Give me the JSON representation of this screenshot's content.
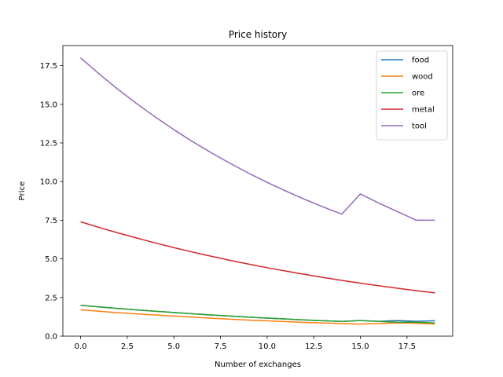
{
  "chart_data": {
    "type": "line",
    "title": "Price history",
    "xlabel": "Number of exchanges",
    "ylabel": "Price",
    "xlim": [
      -0.95,
      19.95
    ],
    "ylim": [
      0,
      18.8
    ],
    "xticks": [
      0,
      2.5,
      5,
      7.5,
      10,
      12.5,
      15,
      17.5
    ],
    "xtick_labels": [
      "0.0",
      "2.5",
      "5.0",
      "7.5",
      "10.0",
      "12.5",
      "15.0",
      "17.5"
    ],
    "yticks": [
      0,
      2.5,
      5,
      7.5,
      10,
      12.5,
      15,
      17.5
    ],
    "ytick_labels": [
      "0.0",
      "2.5",
      "5.0",
      "7.5",
      "10.0",
      "12.5",
      "15.0",
      "17.5"
    ],
    "legend_position": "top-right",
    "grid": false,
    "x": [
      0,
      1,
      2,
      3,
      4,
      5,
      6,
      7,
      8,
      9,
      10,
      11,
      12,
      13,
      14,
      15,
      16,
      17,
      18,
      19
    ],
    "series": [
      {
        "name": "food",
        "color": "#1f77b4",
        "values": [
          2.0,
          1.89,
          1.79,
          1.7,
          1.61,
          1.53,
          1.45,
          1.37,
          1.3,
          1.23,
          1.17,
          1.11,
          1.05,
          1.0,
          0.95,
          1.01,
          0.96,
          1.01,
          0.96,
          1.0
        ]
      },
      {
        "name": "wood",
        "color": "#ff7f0e",
        "values": [
          1.7,
          1.61,
          1.52,
          1.44,
          1.37,
          1.3,
          1.23,
          1.16,
          1.1,
          1.04,
          0.99,
          0.94,
          0.89,
          0.85,
          0.81,
          0.78,
          0.82,
          0.86,
          0.83,
          0.79
        ]
      },
      {
        "name": "ore",
        "color": "#2ca02c",
        "values": [
          2.0,
          1.89,
          1.79,
          1.7,
          1.61,
          1.53,
          1.45,
          1.37,
          1.3,
          1.23,
          1.17,
          1.11,
          1.05,
          1.0,
          0.95,
          1.01,
          0.95,
          0.9,
          0.9,
          0.85
        ]
      },
      {
        "name": "metal",
        "color": "#d62728",
        "values": [
          7.4,
          7.03,
          6.68,
          6.35,
          6.03,
          5.73,
          5.44,
          5.17,
          4.91,
          4.66,
          4.43,
          4.21,
          4.0,
          3.8,
          3.61,
          3.43,
          3.26,
          3.1,
          2.94,
          2.8
        ]
      },
      {
        "name": "tool",
        "color": "#9467bd",
        "values": [
          18.0,
          16.96,
          15.97,
          15.05,
          14.18,
          13.36,
          12.59,
          11.87,
          11.19,
          10.55,
          9.95,
          9.39,
          8.86,
          8.36,
          7.89,
          9.2,
          8.6,
          8.05,
          7.5,
          7.5
        ]
      }
    ]
  }
}
